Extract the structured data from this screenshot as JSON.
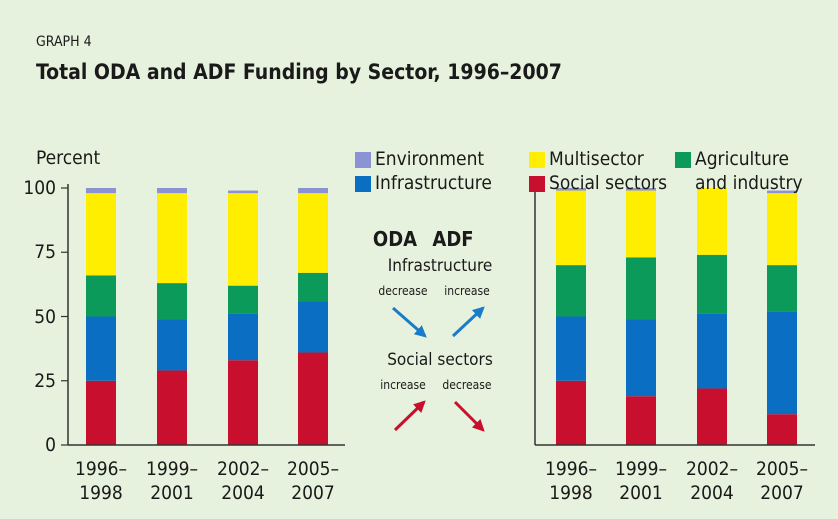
{
  "header": {
    "label": "GRAPH 4",
    "title": "Total ODA and ADF Funding by Sector, 1996–2007"
  },
  "chart_data": [
    {
      "type": "bar",
      "stacked": true,
      "ylabel": "Percent",
      "categories": [
        "1996–\n1998",
        "1999–\n2001",
        "2002–\n2004",
        "2005–\n2007"
      ],
      "ylim": [
        0,
        100
      ],
      "yticks": [
        0,
        25,
        50,
        75,
        100
      ],
      "series": [
        {
          "name": "Social sectors",
          "color": "#c8102e",
          "values": [
            25,
            29,
            33,
            36
          ]
        },
        {
          "name": "Infrastructure",
          "color": "#0a6fc2",
          "values": [
            25,
            20,
            18,
            20
          ]
        },
        {
          "name": "Agriculture and industry",
          "color": "#0c9a5a",
          "values": [
            16,
            14,
            11,
            11
          ]
        },
        {
          "name": "Multisector",
          "color": "#ffee00",
          "values": [
            32,
            35,
            36,
            31
          ]
        },
        {
          "name": "Environment",
          "color": "#8b93d4",
          "values": [
            2,
            2,
            1,
            2
          ]
        }
      ]
    },
    {
      "type": "bar",
      "stacked": true,
      "categories": [
        "1996–\n1998",
        "1999–\n2001",
        "2002–\n2004",
        "2005–\n2007"
      ],
      "ylim": [
        0,
        100
      ],
      "series": [
        {
          "name": "Social sectors",
          "color": "#c8102e",
          "values": [
            25,
            19,
            22,
            12
          ]
        },
        {
          "name": "Infrastructure",
          "color": "#0a6fc2",
          "values": [
            25,
            30,
            29,
            40
          ]
        },
        {
          "name": "Agriculture and industry",
          "color": "#0c9a5a",
          "values": [
            20,
            24,
            23,
            18
          ]
        },
        {
          "name": "Multisector",
          "color": "#ffee00",
          "values": [
            29,
            26,
            26,
            28
          ]
        },
        {
          "name": "Environment",
          "color": "#8b93d4",
          "values": [
            1,
            1,
            0,
            1
          ]
        }
      ]
    }
  ],
  "annotation": {
    "columns": [
      "ODA",
      "ADF"
    ],
    "groups": [
      {
        "label": "Infrastructure",
        "changes": [
          "decrease",
          "increase"
        ]
      },
      {
        "label": "Social sectors",
        "changes": [
          "increase",
          "decrease"
        ]
      }
    ]
  }
}
